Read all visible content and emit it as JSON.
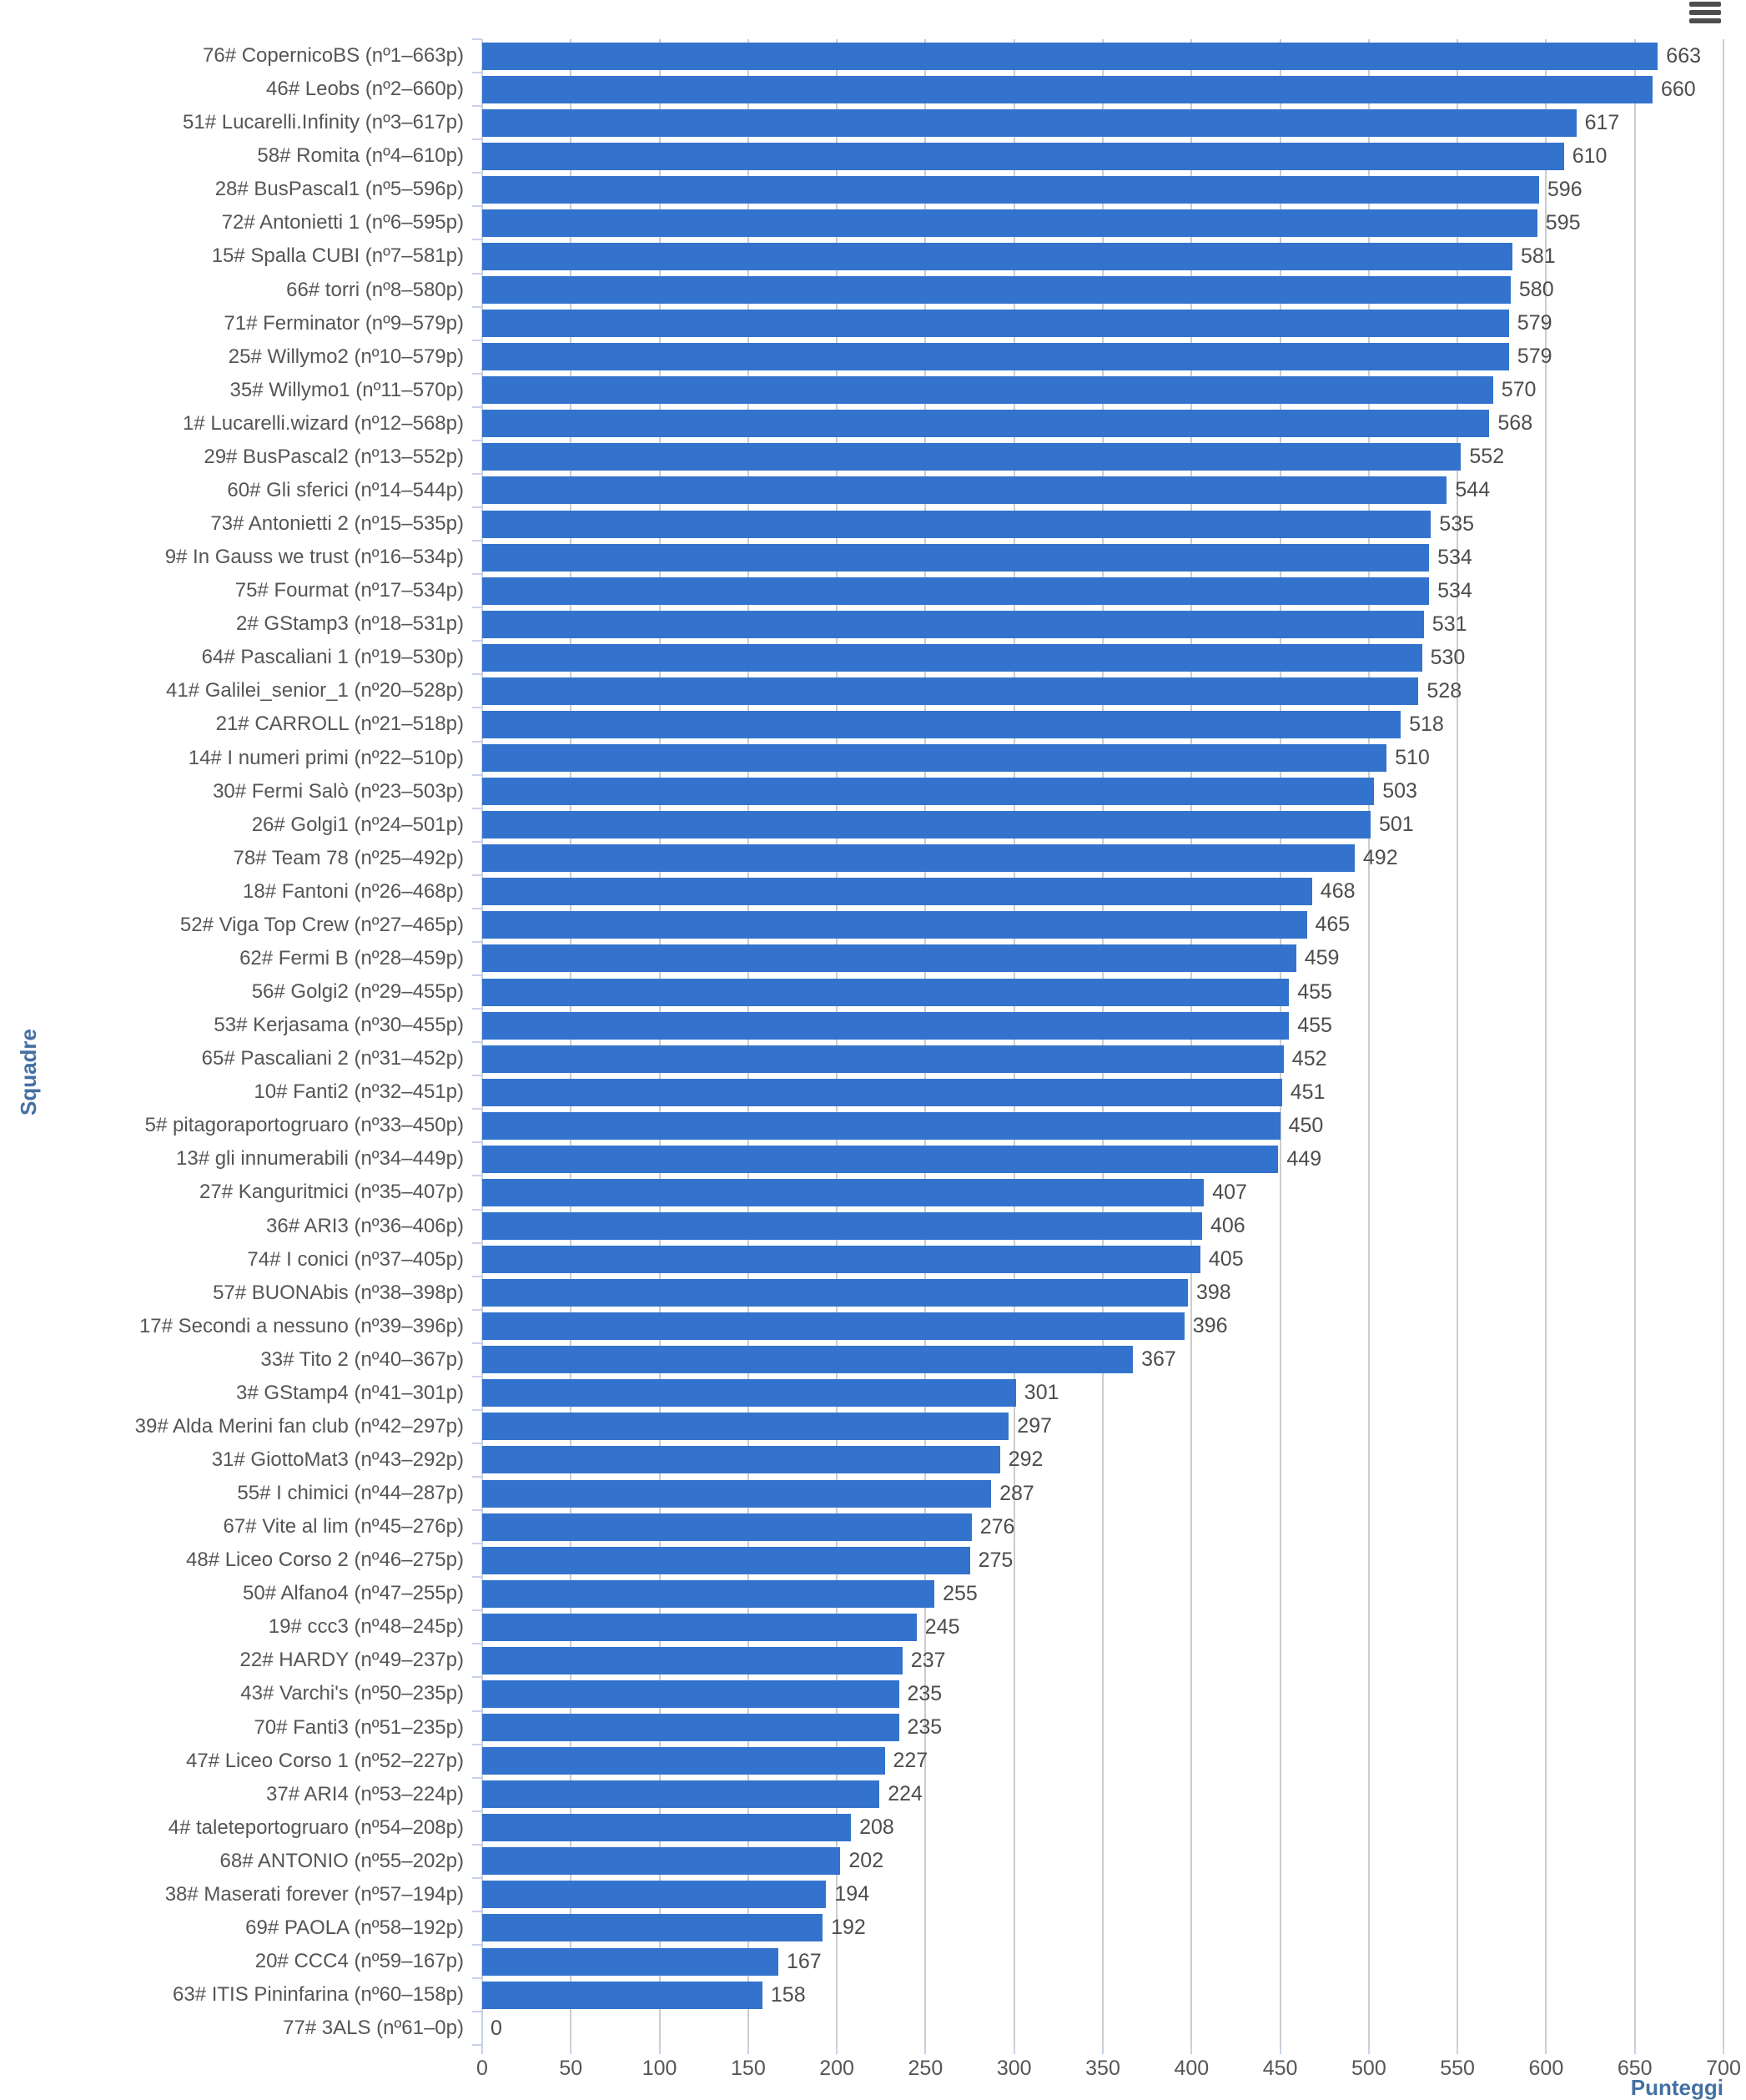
{
  "chart_data": {
    "type": "bar",
    "orientation": "horizontal",
    "title": "",
    "xlabel": "Punteggi",
    "ylabel": "Squadre",
    "xlim": [
      0,
      700
    ],
    "xticks": [
      0,
      50,
      100,
      150,
      200,
      250,
      300,
      350,
      400,
      450,
      500,
      550,
      600,
      650,
      700
    ],
    "grid": true,
    "legend": "none",
    "data_labels": true,
    "categories": [
      "76# CopernicoBS (nº1–663p)",
      "46# Leobs (nº2–660p)",
      "51# Lucarelli.Infinity (nº3–617p)",
      "58# Romita (nº4–610p)",
      "28# BusPascal1 (nº5–596p)",
      "72# Antonietti 1 (nº6–595p)",
      "15# Spalla CUBI (nº7–581p)",
      "66# torri (nº8–580p)",
      "71# Ferminator (nº9–579p)",
      "25# Willymo2 (nº10–579p)",
      "35# Willymo1 (nº11–570p)",
      "1# Lucarelli.wizard (nº12–568p)",
      "29# BusPascal2 (nº13–552p)",
      "60# Gli sferici (nº14–544p)",
      "73# Antonietti 2 (nº15–535p)",
      "9# In Gauss we trust (nº16–534p)",
      "75# Fourmat (nº17–534p)",
      "2# GStamp3 (nº18–531p)",
      "64# Pascaliani 1 (nº19–530p)",
      "41# Galilei_senior_1 (nº20–528p)",
      "21# CARROLL (nº21–518p)",
      "14# I numeri primi (nº22–510p)",
      "30# Fermi Salò (nº23–503p)",
      "26# Golgi1 (nº24–501p)",
      "78# Team 78 (nº25–492p)",
      "18# Fantoni (nº26–468p)",
      "52# Viga Top Crew (nº27–465p)",
      "62# Fermi B (nº28–459p)",
      "56# Golgi2 (nº29–455p)",
      "53# Kerjasama (nº30–455p)",
      "65# Pascaliani 2 (nº31–452p)",
      "10# Fanti2 (nº32–451p)",
      "5# pitagoraportogruaro (nº33–450p)",
      "13# gli innumerabili (nº34–449p)",
      "27# Kanguritmici (nº35–407p)",
      "36# ARI3 (nº36–406p)",
      "74# I conici (nº37–405p)",
      "57# BUONAbis (nº38–398p)",
      "17# Secondi a nessuno (nº39–396p)",
      "33# Tito 2 (nº40–367p)",
      "3# GStamp4 (nº41–301p)",
      "39# Alda Merini fan club (nº42–297p)",
      "31# GiottoMat3 (nº43–292p)",
      "55# I chimici (nº44–287p)",
      "67# Vite al lim (nº45–276p)",
      "48# Liceo Corso 2 (nº46–275p)",
      "50# Alfano4 (nº47–255p)",
      "19# ccc3 (nº48–245p)",
      "22# HARDY (nº49–237p)",
      "43# Varchi's (nº50–235p)",
      "70# Fanti3 (nº51–235p)",
      "47# Liceo Corso 1 (nº52–227p)",
      "37# ARI4 (nº53–224p)",
      "4# taleteportogruaro (nº54–208p)",
      "68# ANTONIO (nº55–202p)",
      "38# Maserati forever (nº57–194p)",
      "69# PAOLA (nº58–192p)",
      "20# CCC4 (nº59–167p)",
      "63# ITIS Pininfarina (nº60–158p)",
      "77# 3ALS (nº61–0p)"
    ],
    "values": [
      663,
      660,
      617,
      610,
      596,
      595,
      581,
      580,
      579,
      579,
      570,
      568,
      552,
      544,
      535,
      534,
      534,
      531,
      530,
      528,
      518,
      510,
      503,
      501,
      492,
      468,
      465,
      459,
      455,
      455,
      452,
      451,
      450,
      449,
      407,
      406,
      405,
      398,
      396,
      367,
      301,
      297,
      292,
      287,
      276,
      275,
      255,
      245,
      237,
      235,
      235,
      227,
      224,
      208,
      202,
      194,
      192,
      167,
      158,
      0
    ],
    "colors": {
      "bar": "#3373cd",
      "grid": "#cccccc",
      "axis_line": "#c6d2e6",
      "tick_label": "#555555",
      "data_label": "#4d4d4d",
      "axis_title": "#4470a2",
      "menu_icon": "#4d4d4d"
    }
  },
  "toolbar": {
    "menu_icon": "hamburger-icon"
  }
}
